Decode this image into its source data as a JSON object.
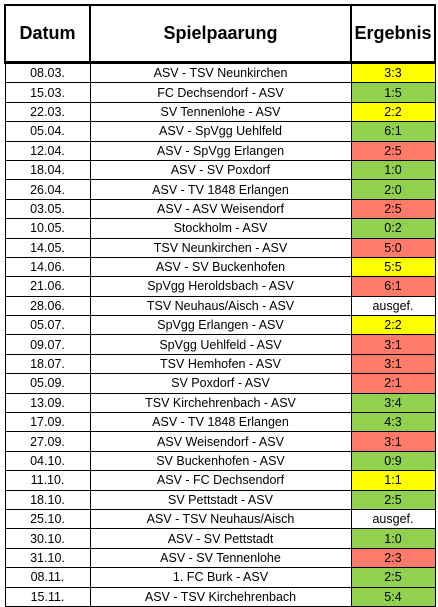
{
  "headers": {
    "date": "Datum",
    "match": "Spielpaarung",
    "result": "Ergebnis"
  },
  "colors": {
    "draw": "#ffff00",
    "win": "#92d050",
    "loss": "#ff7b69",
    "none": "#ffffff"
  },
  "rows": [
    {
      "date": "08.03.",
      "match": "ASV - TSV Neunkirchen",
      "result": "3:3",
      "outcome": "draw"
    },
    {
      "date": "15.03.",
      "match": "FC Dechsendorf - ASV",
      "result": "1:5",
      "outcome": "win"
    },
    {
      "date": "22.03.",
      "match": "SV Tennenlohe - ASV",
      "result": "2:2",
      "outcome": "draw"
    },
    {
      "date": "05.04.",
      "match": "ASV - SpVgg Uehlfeld",
      "result": "6:1",
      "outcome": "win"
    },
    {
      "date": "12.04.",
      "match": "ASV - SpVgg Erlangen",
      "result": "2:5",
      "outcome": "loss"
    },
    {
      "date": "18.04.",
      "match": "ASV - SV Poxdorf",
      "result": "1:0",
      "outcome": "win"
    },
    {
      "date": "26.04.",
      "match": "ASV - TV 1848 Erlangen",
      "result": "2:0",
      "outcome": "win"
    },
    {
      "date": "03.05.",
      "match": "ASV - ASV Weisendorf",
      "result": "2:5",
      "outcome": "loss"
    },
    {
      "date": "10.05.",
      "match": "Stockholm - ASV",
      "result": "0:2",
      "outcome": "win"
    },
    {
      "date": "14.05.",
      "match": "TSV Neunkirchen - ASV",
      "result": "5:0",
      "outcome": "loss"
    },
    {
      "date": "14.06.",
      "match": "ASV - SV Buckenhofen",
      "result": "5:5",
      "outcome": "draw"
    },
    {
      "date": "21.06.",
      "match": "SpVgg Heroldsbach - ASV",
      "result": "6:1",
      "outcome": "loss"
    },
    {
      "date": "28.06.",
      "match": "TSV Neuhaus/Aisch - ASV",
      "result": "ausgef.",
      "outcome": "none"
    },
    {
      "date": "05.07.",
      "match": "SpVgg Erlangen - ASV",
      "result": "2:2",
      "outcome": "draw"
    },
    {
      "date": "09.07.",
      "match": "SpVgg Uehlfeld - ASV",
      "result": "3:1",
      "outcome": "loss"
    },
    {
      "date": "18.07.",
      "match": "TSV Hemhofen - ASV",
      "result": "3:1",
      "outcome": "loss"
    },
    {
      "date": "05.09.",
      "match": "SV Poxdorf - ASV",
      "result": "2:1",
      "outcome": "loss"
    },
    {
      "date": "13.09.",
      "match": "TSV Kirchehrenbach - ASV",
      "result": "3:4",
      "outcome": "win"
    },
    {
      "date": "17.09.",
      "match": "ASV - TV 1848 Erlangen",
      "result": "4:3",
      "outcome": "win"
    },
    {
      "date": "27.09.",
      "match": "ASV Weisendorf - ASV",
      "result": "3:1",
      "outcome": "loss"
    },
    {
      "date": "04.10.",
      "match": "SV Buckenhofen - ASV",
      "result": "0:9",
      "outcome": "win"
    },
    {
      "date": "11.10.",
      "match": "ASV - FC Dechsendorf",
      "result": "1:1",
      "outcome": "draw"
    },
    {
      "date": "18.10.",
      "match": "SV Pettstadt - ASV",
      "result": "2:5",
      "outcome": "win"
    },
    {
      "date": "25.10.",
      "match": "ASV - TSV Neuhaus/Aisch",
      "result": "ausgef.",
      "outcome": "none"
    },
    {
      "date": "30.10.",
      "match": "ASV - SV Pettstadt",
      "result": "1:0",
      "outcome": "win"
    },
    {
      "date": "31.10.",
      "match": "ASV - SV Tennenlohe",
      "result": "2:3",
      "outcome": "loss"
    },
    {
      "date": "08.11.",
      "match": "1. FC Burk - ASV",
      "result": "2:5",
      "outcome": "win"
    },
    {
      "date": "15.11.",
      "match": "ASV - TSV Kirchehrenbach",
      "result": "5:4",
      "outcome": "win"
    }
  ]
}
